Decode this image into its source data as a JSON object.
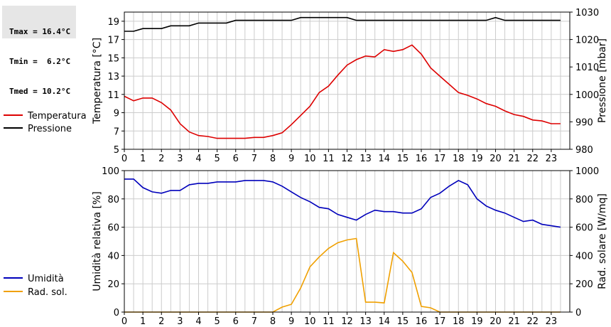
{
  "stats": {
    "tmax": "Tmax = 16.4°C",
    "tmin": "Tmin =  6.2°C",
    "tmed": "Tmed = 10.2°C"
  },
  "colors": {
    "temperature": "#dd0000",
    "pressure": "#000000",
    "humidity": "#0000bb",
    "radiation": "#f0a000",
    "grid": "#cccccc"
  },
  "chart_data": [
    {
      "type": "line",
      "x_ticks": [
        0,
        1,
        2,
        3,
        4,
        5,
        6,
        7,
        8,
        9,
        10,
        11,
        12,
        13,
        14,
        15,
        16,
        17,
        18,
        19,
        20,
        21,
        22,
        23
      ],
      "xlim": [
        0,
        24
      ],
      "ylabel": "Temperatura [°C]",
      "ylim": [
        5,
        20
      ],
      "y_ticks": [
        5,
        7,
        9,
        11,
        13,
        15,
        17,
        19
      ],
      "y2label": "Pressione [mbar]",
      "y2lim": [
        980,
        1030
      ],
      "y2_ticks": [
        980,
        990,
        1000,
        1010,
        1020,
        1030
      ],
      "grid": true,
      "legend_position": "left",
      "series": [
        {
          "name": "Temperatura",
          "axis": "left",
          "x": [
            0,
            0.5,
            1,
            1.5,
            2,
            2.5,
            3,
            3.5,
            4,
            4.5,
            5,
            5.5,
            6,
            6.5,
            7,
            7.5,
            8,
            8.5,
            9,
            9.5,
            10,
            10.5,
            11,
            11.5,
            12,
            12.5,
            13,
            13.5,
            14,
            14.5,
            15,
            15.5,
            16,
            16.5,
            17,
            17.5,
            18,
            18.5,
            19,
            19.5,
            20,
            20.5,
            21,
            21.5,
            22,
            22.5,
            23,
            23.5
          ],
          "values": [
            10.8,
            10.3,
            10.6,
            10.6,
            10.1,
            9.3,
            7.8,
            6.9,
            6.5,
            6.4,
            6.2,
            6.2,
            6.2,
            6.2,
            6.3,
            6.3,
            6.5,
            6.8,
            7.7,
            8.7,
            9.7,
            11.2,
            11.9,
            13.1,
            14.2,
            14.8,
            15.2,
            15.1,
            15.9,
            15.7,
            15.9,
            16.4,
            15.4,
            13.9,
            13.0,
            12.1,
            11.2,
            10.9,
            10.5,
            10.0,
            9.7,
            9.2,
            8.8,
            8.6,
            8.2,
            8.1,
            7.8,
            7.8
          ]
        },
        {
          "name": "Pressione",
          "axis": "right",
          "x": [
            0,
            0.5,
            1,
            1.5,
            2,
            2.5,
            3,
            3.5,
            4,
            4.5,
            5,
            5.5,
            6,
            6.5,
            7,
            7.5,
            8,
            8.5,
            9,
            9.5,
            10,
            10.5,
            11,
            11.5,
            12,
            12.5,
            13,
            13.5,
            14,
            14.5,
            15,
            15.5,
            16,
            16.5,
            17,
            17.5,
            18,
            18.5,
            19,
            19.5,
            20,
            20.5,
            21,
            21.5,
            22,
            22.5,
            23,
            23.5
          ],
          "values": [
            1023,
            1023,
            1024,
            1024,
            1024,
            1025,
            1025,
            1025,
            1026,
            1026,
            1026,
            1026,
            1027,
            1027,
            1027,
            1027,
            1027,
            1027,
            1027,
            1028,
            1028,
            1028,
            1028,
            1028,
            1028,
            1027,
            1027,
            1027,
            1027,
            1027,
            1027,
            1027,
            1027,
            1027,
            1027,
            1027,
            1027,
            1027,
            1027,
            1027,
            1028,
            1027,
            1027,
            1027,
            1027,
            1027,
            1027,
            1027
          ]
        }
      ]
    },
    {
      "type": "line",
      "x_ticks": [
        0,
        1,
        2,
        3,
        4,
        5,
        6,
        7,
        8,
        9,
        10,
        11,
        12,
        13,
        14,
        15,
        16,
        17,
        18,
        19,
        20,
        21,
        22,
        23
      ],
      "xlim": [
        0,
        24
      ],
      "ylabel": "Umidità relativa [%]",
      "ylim": [
        0,
        100
      ],
      "y_ticks": [
        0,
        20,
        40,
        60,
        80,
        100
      ],
      "y2label": "Rad. solare [W/mq]",
      "y2lim": [
        0,
        1000
      ],
      "y2_ticks": [
        0,
        200,
        400,
        600,
        800,
        1000
      ],
      "grid": true,
      "legend_position": "left",
      "series": [
        {
          "name": "Umidità",
          "axis": "left",
          "x": [
            0,
            0.5,
            1,
            1.5,
            2,
            2.5,
            3,
            3.5,
            4,
            4.5,
            5,
            5.5,
            6,
            6.5,
            7,
            7.5,
            8,
            8.5,
            9,
            9.5,
            10,
            10.5,
            11,
            11.5,
            12,
            12.5,
            13,
            13.5,
            14,
            14.5,
            15,
            15.5,
            16,
            16.5,
            17,
            17.5,
            18,
            18.5,
            19,
            19.5,
            20,
            20.5,
            21,
            21.5,
            22,
            22.5,
            23,
            23.5
          ],
          "values": [
            94,
            94,
            88,
            85,
            84,
            86,
            86,
            90,
            91,
            91,
            92,
            92,
            92,
            93,
            93,
            93,
            92,
            89,
            85,
            81,
            78,
            74,
            73,
            69,
            67,
            65,
            69,
            72,
            71,
            71,
            70,
            70,
            73,
            81,
            84,
            89,
            93,
            90,
            80,
            75,
            72,
            70,
            67,
            64,
            65,
            62,
            61,
            60
          ]
        },
        {
          "name": "Rad. sol.",
          "axis": "right",
          "x": [
            0,
            0.5,
            1,
            1.5,
            2,
            2.5,
            3,
            3.5,
            4,
            4.5,
            5,
            5.5,
            6,
            6.5,
            7,
            7.5,
            8,
            8.5,
            9,
            9.5,
            10,
            10.5,
            11,
            11.5,
            12,
            12.5,
            13,
            13.5,
            14,
            14.5,
            15,
            15.5,
            16,
            16.5,
            17,
            17.5,
            18,
            18.5,
            19,
            19.5,
            20,
            20.5,
            21,
            21.5,
            22,
            22.5,
            23,
            23.5
          ],
          "values": [
            0,
            0,
            0,
            0,
            0,
            0,
            0,
            0,
            0,
            0,
            0,
            0,
            0,
            0,
            0,
            0,
            0,
            35,
            55,
            170,
            320,
            390,
            450,
            490,
            510,
            520,
            70,
            70,
            65,
            420,
            360,
            280,
            40,
            30,
            0,
            0,
            0,
            0,
            0,
            0,
            0,
            0,
            0,
            0,
            0,
            0,
            0,
            0
          ]
        }
      ]
    }
  ]
}
